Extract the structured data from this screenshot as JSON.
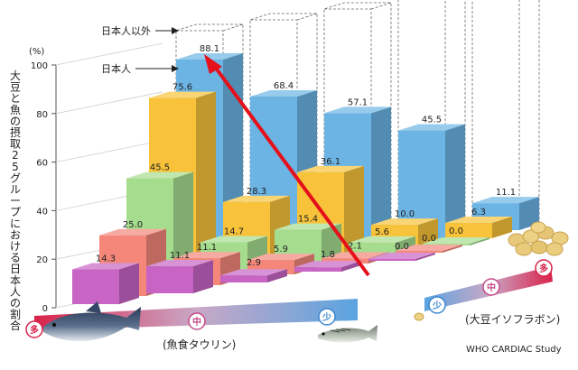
{
  "chart_data": {
    "type": "bar",
    "ylabel": "大豆と魚の摂取25グループにおける日本人の割合",
    "y_unit": "(%)",
    "ylim": [
      0,
      100
    ],
    "yticks": [
      "0",
      "20",
      "40",
      "60",
      "80",
      "100"
    ],
    "x_axis_name": "(魚食タウリン)",
    "z_axis_name": "(大豆イソフラボン)",
    "taurine_levels": [
      "多",
      "中",
      "少"
    ],
    "isoflavone_levels": [
      "少",
      "中",
      "多"
    ],
    "legend": {
      "non_japanese": "日本人以外",
      "japanese": "日本人"
    },
    "source": "WHO CARDIAC Study",
    "rows": [
      {
        "name": "row-1",
        "color": "#c764c4",
        "values": [
          14.3,
          11.1,
          2.9,
          1.8,
          0.0
        ]
      },
      {
        "name": "row-2",
        "color": "#f4867a",
        "values": [
          25.0,
          11.1,
          5.9,
          2.1,
          0.0
        ]
      },
      {
        "name": "row-3",
        "color": "#a6dc8e",
        "values": [
          45.5,
          14.7,
          15.4,
          5.6,
          0.0
        ]
      },
      {
        "name": "row-4",
        "color": "#f8c33a",
        "values": [
          75.6,
          28.3,
          36.1,
          10.0,
          6.3
        ]
      },
      {
        "name": "row-5",
        "color": "#6bb4e4",
        "values": [
          88.1,
          68.4,
          57.1,
          45.5,
          11.1
        ]
      }
    ],
    "labels": [
      [
        "14.3",
        "11.1",
        "2.9",
        "1.8",
        "0.0"
      ],
      [
        "25.0",
        "11.1",
        "5.9",
        "2.1",
        "0.0"
      ],
      [
        "45.5",
        "14.7",
        "15.4",
        "5.6",
        "0.0"
      ],
      [
        "75.6",
        "28.3",
        "36.1",
        "10.0",
        "6.3"
      ],
      [
        "88.1",
        "68.4",
        "57.1",
        "45.5",
        "11.1"
      ]
    ]
  }
}
